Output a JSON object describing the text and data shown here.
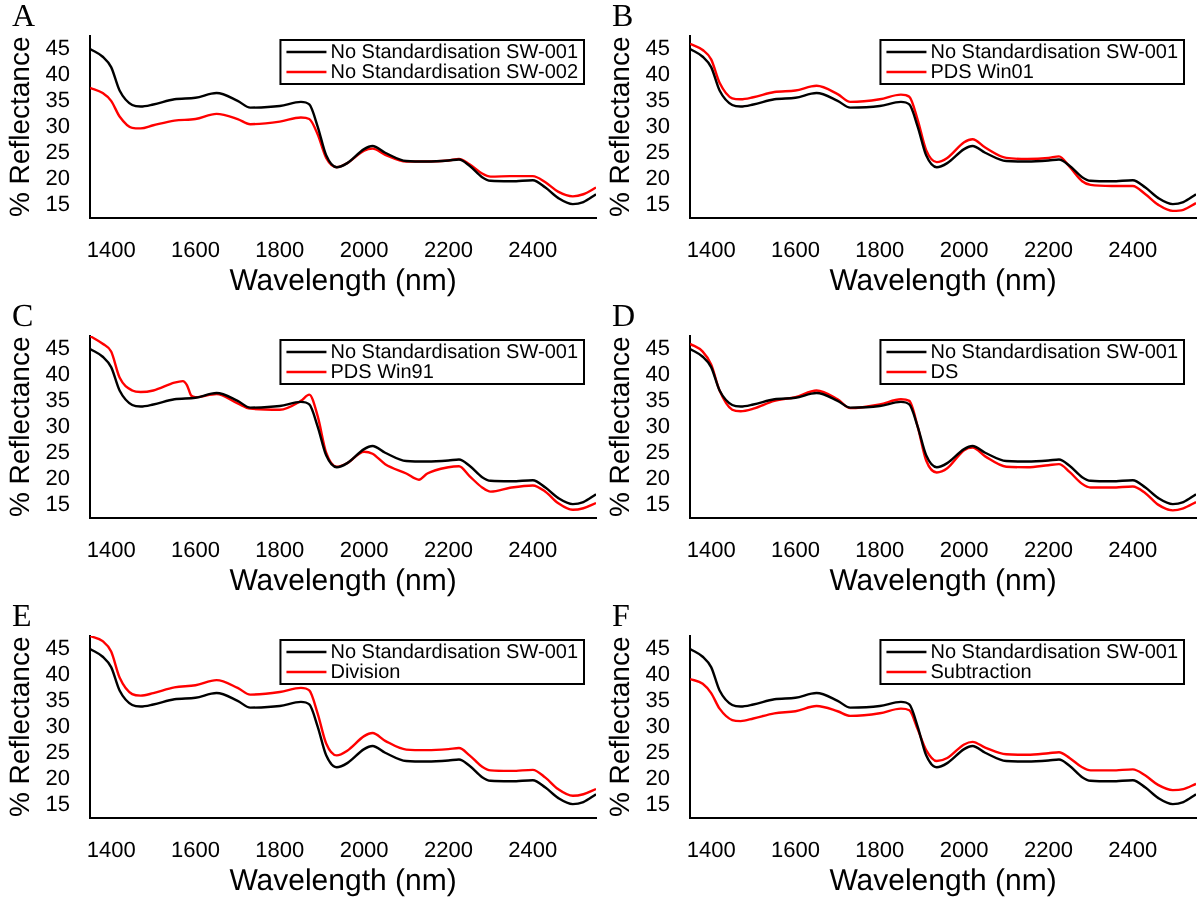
{
  "chart_data": [
    {
      "type": "line",
      "annotations": [
        "A"
      ],
      "xlabel": "Wavelength (nm)",
      "ylabel": "% Reflectance",
      "xlim": [
        1350,
        2550
      ],
      "xticks": [
        1400,
        1600,
        1800,
        2000,
        2200,
        2400
      ],
      "ylim": [
        12.5,
        47.5
      ],
      "yticks": [
        15,
        20,
        25,
        30,
        35,
        40,
        45
      ],
      "legend": "top right",
      "x": [
        1350,
        1380,
        1400,
        1420,
        1450,
        1470,
        1500,
        1550,
        1600,
        1650,
        1700,
        1730,
        1800,
        1850,
        1870,
        1890,
        1910,
        1935,
        1960,
        2000,
        2020,
        2050,
        2100,
        2150,
        2200,
        2225,
        2250,
        2280,
        2300,
        2350,
        2400,
        2430,
        2460,
        2495,
        2520,
        2550
      ],
      "series": [
        {
          "name": "No Standardisation SW-001",
          "color": "#000000",
          "values": [
            45,
            43.5,
            41.5,
            37,
            34.2,
            33.9,
            34.3,
            35.3,
            35.6,
            36.5,
            35,
            33.7,
            34,
            34.8,
            34.3,
            30,
            24.5,
            22.2,
            23,
            25.7,
            26.3,
            25,
            23.4,
            23.3,
            23.5,
            23.7,
            22.5,
            20.3,
            19.6,
            19.5,
            19.7,
            18.3,
            16.3,
            15.1,
            15.5,
            17
          ]
        },
        {
          "name": "No Standardisation SW-002",
          "color": "#ff0000",
          "values": [
            37.5,
            36.5,
            35,
            32,
            29.8,
            29.7,
            30.3,
            31.2,
            31.5,
            32.5,
            31.5,
            30.5,
            31,
            31.8,
            31.5,
            28.5,
            24,
            22.2,
            23,
            25.4,
            25.8,
            24.6,
            23.3,
            23.3,
            23.5,
            23.8,
            22.8,
            21,
            20.4,
            20.5,
            20.5,
            19.3,
            17.5,
            16.6,
            17,
            18.3
          ]
        }
      ]
    },
    {
      "type": "line",
      "annotations": [
        "B"
      ],
      "xlabel": "Wavelength (nm)",
      "ylabel": "% Reflectance",
      "xlim": [
        1350,
        2550
      ],
      "xticks": [
        1400,
        1600,
        1800,
        2000,
        2200,
        2400
      ],
      "ylim": [
        12.5,
        47.5
      ],
      "yticks": [
        15,
        20,
        25,
        30,
        35,
        40,
        45
      ],
      "legend": "top right",
      "x": [
        1350,
        1380,
        1400,
        1420,
        1450,
        1470,
        1500,
        1550,
        1600,
        1650,
        1700,
        1730,
        1800,
        1850,
        1870,
        1890,
        1910,
        1935,
        1960,
        2000,
        2020,
        2050,
        2100,
        2150,
        2200,
        2225,
        2250,
        2280,
        2300,
        2350,
        2400,
        2430,
        2460,
        2495,
        2520,
        2550
      ],
      "series": [
        {
          "name": "No Standardisation SW-001",
          "color": "#000000",
          "values": [
            45,
            43.5,
            41.5,
            37,
            34.2,
            33.9,
            34.3,
            35.3,
            35.6,
            36.5,
            35,
            33.7,
            34,
            34.8,
            34.3,
            30,
            24.5,
            22.2,
            23,
            25.7,
            26.3,
            25,
            23.4,
            23.3,
            23.5,
            23.7,
            22.5,
            20.3,
            19.6,
            19.5,
            19.7,
            18.3,
            16.3,
            15.1,
            15.5,
            17
          ]
        },
        {
          "name": "PDS Win01",
          "color": "#ff0000",
          "values": [
            46,
            44.8,
            43,
            38.5,
            35.5,
            35.3,
            35.7,
            36.7,
            37,
            37.9,
            36.3,
            34.8,
            35.3,
            36.2,
            35.8,
            31.3,
            25.5,
            23.2,
            24,
            27,
            27.6,
            26,
            24,
            23.8,
            24,
            24.3,
            22.3,
            19.5,
            18.8,
            18.6,
            18.6,
            17,
            15,
            13.8,
            14,
            15.3
          ]
        }
      ]
    },
    {
      "type": "line",
      "annotations": [
        "C"
      ],
      "xlabel": "Wavelength (nm)",
      "ylabel": "% Reflectance",
      "xlim": [
        1350,
        2550
      ],
      "xticks": [
        1400,
        1600,
        1800,
        2000,
        2200,
        2400
      ],
      "ylim": [
        12.5,
        47.5
      ],
      "yticks": [
        15,
        20,
        25,
        30,
        35,
        40,
        45
      ],
      "legend": "top right",
      "x": [
        1350,
        1380,
        1400,
        1420,
        1450,
        1470,
        1500,
        1550,
        1600,
        1650,
        1700,
        1730,
        1800,
        1850,
        1870,
        1890,
        1910,
        1935,
        1960,
        2000,
        2020,
        2050,
        2100,
        2150,
        2200,
        2225,
        2250,
        2280,
        2300,
        2350,
        2400,
        2430,
        2460,
        2495,
        2520,
        2550
      ],
      "series": [
        {
          "name": "No Standardisation SW-001",
          "color": "#000000",
          "values": [
            45,
            43.5,
            41.5,
            37,
            34.2,
            33.9,
            34.3,
            35.3,
            35.6,
            36.5,
            35,
            33.7,
            34,
            34.8,
            34.3,
            30,
            24.5,
            22.2,
            23,
            25.7,
            26.3,
            25,
            23.4,
            23.3,
            23.5,
            23.7,
            22.5,
            20.3,
            19.6,
            19.5,
            19.7,
            18.3,
            16.3,
            15.1,
            15.5,
            17
          ]
        },
        {
          "name": "PDS Win91",
          "color": "#ff0000",
          "x": [
            1350,
            1380,
            1400,
            1420,
            1450,
            1470,
            1500,
            1550,
            1570,
            1580,
            1590,
            1600,
            1650,
            1700,
            1730,
            1800,
            1850,
            1870,
            1890,
            1910,
            1935,
            1960,
            2000,
            2020,
            2050,
            2100,
            2130,
            2150,
            2200,
            2225,
            2250,
            2280,
            2300,
            2350,
            2400,
            2430,
            2460,
            2495,
            2520,
            2550
          ],
          "values": [
            47.5,
            46,
            44.5,
            39.5,
            37,
            36.7,
            37,
            38.5,
            38.8,
            38,
            36,
            35.7,
            36.3,
            34.5,
            33.5,
            33.3,
            35,
            36.2,
            32,
            25,
            22.3,
            23,
            25.2,
            24.8,
            22.8,
            21,
            19.8,
            21,
            22.2,
            22.4,
            20.5,
            18.3,
            17.5,
            18.3,
            18.7,
            17.5,
            15.3,
            14,
            14.3,
            15.3
          ]
        }
      ]
    },
    {
      "type": "line",
      "annotations": [
        "D"
      ],
      "xlabel": "Wavelength (nm)",
      "ylabel": "% Reflectance",
      "xlim": [
        1350,
        2550
      ],
      "xticks": [
        1400,
        1600,
        1800,
        2000,
        2200,
        2400
      ],
      "ylim": [
        12.5,
        47.5
      ],
      "yticks": [
        15,
        20,
        25,
        30,
        35,
        40,
        45
      ],
      "legend": "top right",
      "x": [
        1350,
        1380,
        1400,
        1420,
        1450,
        1470,
        1500,
        1550,
        1600,
        1650,
        1700,
        1730,
        1800,
        1850,
        1870,
        1890,
        1910,
        1935,
        1960,
        2000,
        2020,
        2050,
        2100,
        2150,
        2200,
        2225,
        2250,
        2280,
        2300,
        2350,
        2400,
        2430,
        2460,
        2495,
        2520,
        2550
      ],
      "series": [
        {
          "name": "No Standardisation SW-001",
          "color": "#000000",
          "values": [
            45,
            43.5,
            41.5,
            37,
            34.2,
            33.9,
            34.3,
            35.3,
            35.6,
            36.5,
            35,
            33.7,
            34,
            34.8,
            34.3,
            30,
            24.5,
            22.2,
            23,
            25.7,
            26.3,
            25,
            23.4,
            23.3,
            23.5,
            23.7,
            22.5,
            20.3,
            19.6,
            19.5,
            19.7,
            18.3,
            16.3,
            15.1,
            15.5,
            17
          ]
        },
        {
          "name": "DS",
          "color": "#ff0000",
          "values": [
            46,
            44.5,
            42,
            37,
            33.3,
            33,
            33.5,
            35,
            35.7,
            37,
            35.3,
            33.6,
            34.3,
            35.3,
            35,
            30,
            23.5,
            21.2,
            22,
            25.5,
            26,
            24.3,
            22.3,
            22.2,
            22.6,
            22.8,
            21.3,
            19,
            18.3,
            18.3,
            18.5,
            17.2,
            15,
            13.9,
            14.3,
            15.5
          ]
        }
      ]
    },
    {
      "type": "line",
      "annotations": [
        "E"
      ],
      "xlabel": "Wavelength (nm)",
      "ylabel": "% Reflectance",
      "xlim": [
        1350,
        2550
      ],
      "xticks": [
        1400,
        1600,
        1800,
        2000,
        2200,
        2400
      ],
      "ylim": [
        12.5,
        47.5
      ],
      "yticks": [
        15,
        20,
        25,
        30,
        35,
        40,
        45
      ],
      "legend": "top right",
      "x": [
        1350,
        1380,
        1400,
        1420,
        1450,
        1470,
        1500,
        1550,
        1600,
        1650,
        1700,
        1730,
        1800,
        1850,
        1870,
        1890,
        1910,
        1935,
        1960,
        2000,
        2020,
        2050,
        2100,
        2150,
        2200,
        2225,
        2250,
        2280,
        2300,
        2350,
        2400,
        2430,
        2460,
        2495,
        2520,
        2550
      ],
      "series": [
        {
          "name": "No Standardisation SW-001",
          "color": "#000000",
          "values": [
            45,
            43.5,
            41.5,
            37,
            34.2,
            33.9,
            34.3,
            35.3,
            35.6,
            36.5,
            35,
            33.7,
            34,
            34.8,
            34.3,
            30,
            24.5,
            22.2,
            23,
            25.7,
            26.3,
            25,
            23.4,
            23.3,
            23.5,
            23.7,
            22.5,
            20.3,
            19.6,
            19.5,
            19.7,
            18.3,
            16.3,
            15.1,
            15.5,
            17
          ]
        },
        {
          "name": "Division",
          "color": "#ff0000",
          "values": [
            47.5,
            46.5,
            44.5,
            39.5,
            36.3,
            36,
            36.5,
            37.6,
            38,
            39,
            37.5,
            36.2,
            36.7,
            37.5,
            37,
            32.5,
            26.8,
            24.5,
            25.4,
            28.2,
            28.8,
            27.3,
            25.6,
            25.5,
            25.7,
            25.9,
            24.5,
            22.3,
            21.6,
            21.5,
            21.7,
            20.2,
            18,
            16.7,
            17,
            18
          ]
        }
      ]
    },
    {
      "type": "line",
      "annotations": [
        "F"
      ],
      "xlabel": "Wavelength (nm)",
      "ylabel": "% Reflectance",
      "xlim": [
        1350,
        2550
      ],
      "xticks": [
        1400,
        1600,
        1800,
        2000,
        2200,
        2400
      ],
      "ylim": [
        12.5,
        47.5
      ],
      "yticks": [
        15,
        20,
        25,
        30,
        35,
        40,
        45
      ],
      "legend": "top right",
      "x": [
        1350,
        1380,
        1400,
        1420,
        1450,
        1470,
        1500,
        1550,
        1600,
        1650,
        1700,
        1730,
        1800,
        1850,
        1870,
        1890,
        1910,
        1935,
        1960,
        2000,
        2020,
        2050,
        2100,
        2150,
        2200,
        2225,
        2250,
        2280,
        2300,
        2350,
        2400,
        2430,
        2460,
        2495,
        2520,
        2550
      ],
      "series": [
        {
          "name": "No Standardisation SW-001",
          "color": "#000000",
          "values": [
            45,
            43.5,
            41.5,
            37,
            34.2,
            33.9,
            34.3,
            35.3,
            35.6,
            36.5,
            35,
            33.7,
            34,
            34.8,
            34.3,
            30,
            24.5,
            22.2,
            23,
            25.7,
            26.3,
            25,
            23.4,
            23.3,
            23.5,
            23.7,
            22.5,
            20.3,
            19.6,
            19.5,
            19.7,
            18.3,
            16.3,
            15.1,
            15.5,
            17
          ]
        },
        {
          "name": "Subtraction",
          "color": "#ff0000",
          "values": [
            39.2,
            38.3,
            36.5,
            33.5,
            31.3,
            31.1,
            31.6,
            32.6,
            33,
            34,
            33,
            32.1,
            32.6,
            33.5,
            33.2,
            29.5,
            25.5,
            23.4,
            24,
            26.6,
            27.1,
            26,
            24.7,
            24.6,
            24.9,
            25.1,
            24,
            22.2,
            21.6,
            21.6,
            21.8,
            20.6,
            18.8,
            17.8,
            18,
            19
          ]
        }
      ]
    }
  ]
}
